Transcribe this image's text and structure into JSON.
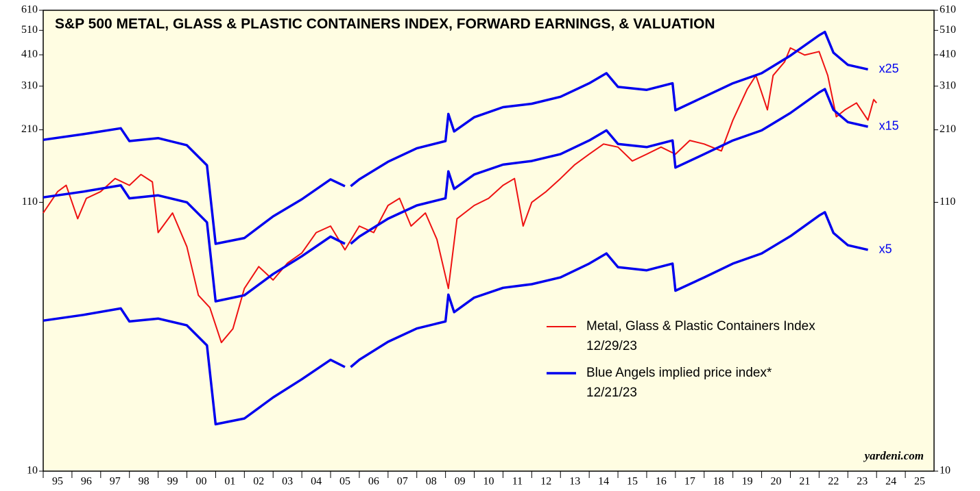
{
  "chart_data": {
    "type": "line",
    "title": "S&P 500 METAL, GLASS & PLASTIC CONTAINERS INDEX, FORWARD EARNINGS, & VALUATION",
    "log_scale": true,
    "ylim": [
      10,
      610
    ],
    "yticks": [
      10,
      110,
      210,
      310,
      410,
      510,
      610
    ],
    "xlim": [
      1995,
      2026
    ],
    "xticks": [
      {
        "value": 1995,
        "label": "95"
      },
      {
        "value": 1996,
        "label": "96"
      },
      {
        "value": 1997,
        "label": "97"
      },
      {
        "value": 1998,
        "label": "98"
      },
      {
        "value": 1999,
        "label": "99"
      },
      {
        "value": 2000,
        "label": "00"
      },
      {
        "value": 2001,
        "label": "01"
      },
      {
        "value": 2002,
        "label": "02"
      },
      {
        "value": 2003,
        "label": "03"
      },
      {
        "value": 2004,
        "label": "04"
      },
      {
        "value": 2005,
        "label": "05"
      },
      {
        "value": 2006,
        "label": "06"
      },
      {
        "value": 2007,
        "label": "07"
      },
      {
        "value": 2008,
        "label": "08"
      },
      {
        "value": 2009,
        "label": "09"
      },
      {
        "value": 2010,
        "label": "10"
      },
      {
        "value": 2011,
        "label": "11"
      },
      {
        "value": 2012,
        "label": "12"
      },
      {
        "value": 2013,
        "label": "13"
      },
      {
        "value": 2014,
        "label": "14"
      },
      {
        "value": 2015,
        "label": "15"
      },
      {
        "value": 2016,
        "label": "16"
      },
      {
        "value": 2017,
        "label": "17"
      },
      {
        "value": 2018,
        "label": "18"
      },
      {
        "value": 2019,
        "label": "19"
      },
      {
        "value": 2020,
        "label": "20"
      },
      {
        "value": 2021,
        "label": "21"
      },
      {
        "value": 2022,
        "label": "22"
      },
      {
        "value": 2023,
        "label": "23"
      },
      {
        "value": 2024,
        "label": "24"
      },
      {
        "value": 2025,
        "label": "25"
      }
    ],
    "series": [
      {
        "name": "Metal, Glass & Plastic Containers Index",
        "date": "12/29/23",
        "color": "#ee1111",
        "x": [
          1995.0,
          1995.5,
          1995.8,
          1996.2,
          1996.5,
          1997.0,
          1997.5,
          1998.0,
          1998.4,
          1998.8,
          1999.0,
          1999.5,
          2000.0,
          2000.4,
          2000.8,
          2001.2,
          2001.6,
          2002.0,
          2002.5,
          2003.0,
          2003.5,
          2004.0,
          2004.5,
          2005.0,
          2005.5,
          2006.0,
          2006.5,
          2007.0,
          2007.4,
          2007.8,
          2008.3,
          2008.7,
          2009.1,
          2009.4,
          2010.0,
          2010.5,
          2011.0,
          2011.4,
          2011.7,
          2012.0,
          2012.5,
          2013.0,
          2013.5,
          2014.0,
          2014.5,
          2015.0,
          2015.5,
          2016.0,
          2016.5,
          2017.0,
          2017.5,
          2018.0,
          2018.6,
          2019.0,
          2019.5,
          2019.8,
          2020.2,
          2020.4,
          2020.8,
          2021.0,
          2021.5,
          2022.0,
          2022.3,
          2022.6,
          2022.9,
          2023.3,
          2023.7,
          2023.9,
          2024.0
        ],
        "values": [
          100,
          121,
          128,
          95,
          114,
          121,
          136,
          128,
          141,
          132,
          84,
          100,
          74,
          48,
          43,
          31.5,
          35.6,
          51,
          62,
          55,
          64,
          70,
          84,
          89,
          72,
          89,
          84,
          107,
          114,
          89,
          100,
          79,
          51,
          95,
          107,
          114,
          128,
          136,
          89,
          110,
          121,
          136,
          154,
          169,
          185,
          180,
          159,
          169,
          180,
          169,
          191,
          185,
          174,
          229,
          302,
          341,
          251,
          341,
          385,
          436,
          409,
          422,
          341,
          236,
          251,
          267,
          229,
          275,
          267
        ]
      },
      {
        "name": "Blue Angels implied price index*",
        "date": "12/21/23",
        "color": "#0000ee",
        "x": [
          1995.0,
          1996.4,
          1997.7,
          1998.0,
          1999.0,
          2000.0,
          2000.7,
          2001.0,
          2002.0,
          2003.0,
          2004.0,
          2005.0,
          2005.5,
          2005.6,
          2005.7,
          2006.0,
          2007.0,
          2008.0,
          2009.0,
          2009.1,
          2009.3,
          2010.0,
          2011.0,
          2012.0,
          2013.0,
          2014.0,
          2014.6,
          2015.0,
          2016.0,
          2016.9,
          2017.0,
          2018.0,
          2019.0,
          2020.0,
          2021.0,
          2022.0,
          2022.2,
          2022.5,
          2023.0,
          2023.7
        ],
        "values": [
          192,
          202,
          213,
          190,
          195,
          183,
          153,
          76,
          80,
          97,
          113,
          135,
          127,
          null,
          127,
          135,
          158,
          178,
          190,
          242,
          207,
          235,
          257,
          265,
          282,
          318,
          348,
          308,
          300,
          318,
          250,
          282,
          318,
          348,
          407,
          488,
          503,
          418,
          375,
          360
        ]
      },
      {
        "color": "#0000ee",
        "x": [
          1995.0,
          1996.4,
          1997.7,
          1998.0,
          1999.0,
          2000.0,
          2000.7,
          2001.0,
          2002.0,
          2003.0,
          2004.0,
          2005.0,
          2005.5,
          2005.6,
          2005.7,
          2006.0,
          2007.0,
          2008.0,
          2009.0,
          2009.1,
          2009.3,
          2010.0,
          2011.0,
          2012.0,
          2013.0,
          2014.0,
          2014.6,
          2015.0,
          2016.0,
          2016.9,
          2017.0,
          2018.0,
          2019.0,
          2020.0,
          2021.0,
          2022.0,
          2022.2,
          2022.5,
          2023.0,
          2023.7
        ],
        "values": [
          115,
          121,
          128,
          114,
          117,
          110,
          92,
          45.5,
          48,
          58,
          68,
          81,
          76,
          null,
          76,
          81,
          95,
          107,
          114,
          145,
          124,
          141,
          154,
          159,
          169,
          191,
          209,
          185,
          180,
          191,
          150,
          169,
          191,
          209,
          244,
          293,
          302,
          251,
          225,
          216
        ]
      },
      {
        "color": "#0000ee",
        "x": [
          1995.0,
          1996.4,
          1997.7,
          1998.0,
          1999.0,
          2000.0,
          2000.7,
          2001.0,
          2002.0,
          2003.0,
          2004.0,
          2005.0,
          2005.5,
          2005.6,
          2005.7,
          2006.0,
          2007.0,
          2008.0,
          2009.0,
          2009.1,
          2009.3,
          2010.0,
          2011.0,
          2012.0,
          2013.0,
          2014.0,
          2014.6,
          2015.0,
          2016.0,
          2016.9,
          2017.0,
          2018.0,
          2019.0,
          2020.0,
          2021.0,
          2022.0,
          2022.2,
          2022.5,
          2023.0,
          2023.7
        ],
        "values": [
          38.3,
          40.3,
          42.7,
          38,
          39,
          36.7,
          30.7,
          15.2,
          16,
          19.3,
          22.7,
          27,
          25.3,
          null,
          25.3,
          27,
          31.7,
          35.7,
          38,
          48.3,
          41.3,
          47,
          51.3,
          53,
          56.3,
          63.7,
          69.7,
          61.7,
          60,
          63.7,
          50,
          56.3,
          63.7,
          69.7,
          81.3,
          97.7,
          100.7,
          83.7,
          75,
          72
        ]
      }
    ],
    "annotations": [
      "x25",
      "x15",
      "x5"
    ],
    "source": "yardeni.com"
  }
}
